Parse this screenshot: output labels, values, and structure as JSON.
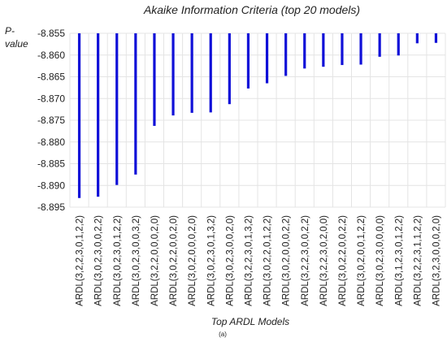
{
  "chart_data": {
    "type": "bar",
    "title": "Akaike Information Criteria (top 20 models)",
    "ylabel_lines": [
      "P-",
      "value"
    ],
    "xlabel": "Top ARDL Models",
    "caption": "(a)",
    "ylim": [
      -8.895,
      -8.855
    ],
    "yticks": [
      -8.855,
      -8.86,
      -8.865,
      -8.87,
      -8.875,
      -8.88,
      -8.885,
      -8.89,
      -8.895
    ],
    "ytick_labels": [
      "-8.855",
      "-8.860",
      "-8.865",
      "-8.870",
      "-8.875",
      "-8.880",
      "-8.885",
      "-8.890",
      "-8.895"
    ],
    "grid": true,
    "bar_color": "#1010d8",
    "categories": [
      "ARDL(3,2,2,3,0,1,2,2)",
      "ARDL(3,0,2,3,0,0,2,2)",
      "ARDL(3,0,2,3,0,1,2,2)",
      "ARDL(3,0,2,3,0,0,3,2)",
      "ARDL(3,2,2,0,0,0,2,0)",
      "ARDL(3,0,2,2,0,0,2,0)",
      "ARDL(3,0,2,0,0,0,2,0)",
      "ARDL(3,0,2,3,0,1,3,2)",
      "ARDL(3,0,2,3,0,0,2,0)",
      "ARDL(3,2,2,3,0,1,3,2)",
      "ARDL(3,0,2,2,0,1,2,2)",
      "ARDL(3,0,2,0,0,0,2,2)",
      "ARDL(3,2,2,3,0,0,2,2)",
      "ARDL(3,2,2,3,0,2,0,0)",
      "ARDL(3,0,2,2,0,0,2,2)",
      "ARDL(3,0,2,0,0,1,2,2)",
      "ARDL(3,0,2,3,0,0,0,0)",
      "ARDL(3,1,2,3,0,1,2,2)",
      "ARDL(3,2,2,3,1,1,2,2)",
      "ARDL(3,2,3,0,0,0,2,0)"
    ],
    "values": [
      -8.8929,
      -8.8926,
      -8.8899,
      -8.8875,
      -8.8763,
      -8.8739,
      -8.8733,
      -8.8732,
      -8.8713,
      -8.8677,
      -8.8665,
      -8.8648,
      -8.8631,
      -8.8627,
      -8.8623,
      -8.8622,
      -8.8604,
      -8.8601,
      -8.8573,
      -8.8572
    ]
  }
}
